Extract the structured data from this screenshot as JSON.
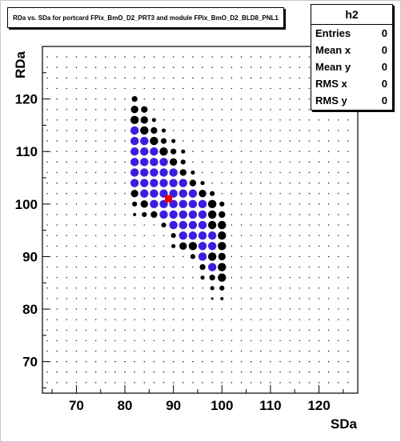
{
  "chart_data": {
    "type": "scatter",
    "title": "RDa vs. SDa for portcard FPix_BmO_D2_PRT3 and module FPix_BmO_D2_BLD8_PNL1",
    "xlabel": "SDa",
    "ylabel": "RDa",
    "xlim": [
      63,
      128
    ],
    "ylim": [
      64,
      130
    ],
    "xticks": [
      70,
      80,
      90,
      100,
      110,
      120
    ],
    "yticks": [
      70,
      80,
      90,
      100,
      110,
      120
    ],
    "grid": "dotted",
    "legend": "none",
    "colors": {
      "black": "#000000",
      "blue": "#3a1ee0",
      "red": "#e60000"
    },
    "points": [
      {
        "x": 82,
        "y": 120,
        "c": "black",
        "s": 0.7
      },
      {
        "x": 82,
        "y": 118,
        "c": "black",
        "s": 0.9
      },
      {
        "x": 84,
        "y": 118,
        "c": "black",
        "s": 0.8
      },
      {
        "x": 82,
        "y": 116,
        "c": "black",
        "s": 1.0
      },
      {
        "x": 84,
        "y": 116,
        "c": "black",
        "s": 0.9
      },
      {
        "x": 86,
        "y": 116,
        "c": "black",
        "s": 0.5
      },
      {
        "x": 82,
        "y": 114,
        "c": "blue",
        "s": 1.0
      },
      {
        "x": 84,
        "y": 114,
        "c": "black",
        "s": 1.0
      },
      {
        "x": 86,
        "y": 114,
        "c": "black",
        "s": 0.8
      },
      {
        "x": 88,
        "y": 114,
        "c": "black",
        "s": 0.5
      },
      {
        "x": 82,
        "y": 112,
        "c": "blue",
        "s": 1.0
      },
      {
        "x": 84,
        "y": 112,
        "c": "blue",
        "s": 1.0
      },
      {
        "x": 86,
        "y": 112,
        "c": "black",
        "s": 1.0
      },
      {
        "x": 88,
        "y": 112,
        "c": "black",
        "s": 0.7
      },
      {
        "x": 90,
        "y": 112,
        "c": "black",
        "s": 0.5
      },
      {
        "x": 82,
        "y": 110,
        "c": "blue",
        "s": 1.0
      },
      {
        "x": 84,
        "y": 110,
        "c": "blue",
        "s": 1.0
      },
      {
        "x": 86,
        "y": 110,
        "c": "blue",
        "s": 1.0
      },
      {
        "x": 88,
        "y": 110,
        "c": "black",
        "s": 1.0
      },
      {
        "x": 90,
        "y": 110,
        "c": "black",
        "s": 0.7
      },
      {
        "x": 92,
        "y": 110,
        "c": "black",
        "s": 0.5
      },
      {
        "x": 82,
        "y": 108,
        "c": "blue",
        "s": 1.0
      },
      {
        "x": 84,
        "y": 108,
        "c": "blue",
        "s": 1.0
      },
      {
        "x": 86,
        "y": 108,
        "c": "blue",
        "s": 1.0
      },
      {
        "x": 88,
        "y": 108,
        "c": "blue",
        "s": 1.0
      },
      {
        "x": 90,
        "y": 108,
        "c": "black",
        "s": 0.9
      },
      {
        "x": 92,
        "y": 108,
        "c": "black",
        "s": 0.6
      },
      {
        "x": 82,
        "y": 106,
        "c": "blue",
        "s": 1.0
      },
      {
        "x": 84,
        "y": 106,
        "c": "blue",
        "s": 1.0
      },
      {
        "x": 86,
        "y": 106,
        "c": "blue",
        "s": 1.0
      },
      {
        "x": 88,
        "y": 106,
        "c": "blue",
        "s": 1.0
      },
      {
        "x": 90,
        "y": 106,
        "c": "blue",
        "s": 1.0
      },
      {
        "x": 92,
        "y": 106,
        "c": "black",
        "s": 0.8
      },
      {
        "x": 94,
        "y": 106,
        "c": "black",
        "s": 0.5
      },
      {
        "x": 82,
        "y": 104,
        "c": "blue",
        "s": 1.0
      },
      {
        "x": 84,
        "y": 104,
        "c": "blue",
        "s": 1.0
      },
      {
        "x": 86,
        "y": 104,
        "c": "blue",
        "s": 1.0
      },
      {
        "x": 88,
        "y": 104,
        "c": "blue",
        "s": 1.0
      },
      {
        "x": 90,
        "y": 104,
        "c": "blue",
        "s": 1.0
      },
      {
        "x": 92,
        "y": 104,
        "c": "blue",
        "s": 1.0
      },
      {
        "x": 94,
        "y": 104,
        "c": "black",
        "s": 0.8
      },
      {
        "x": 96,
        "y": 104,
        "c": "black",
        "s": 0.5
      },
      {
        "x": 82,
        "y": 102,
        "c": "black",
        "s": 0.9
      },
      {
        "x": 84,
        "y": 102,
        "c": "blue",
        "s": 1.0
      },
      {
        "x": 86,
        "y": 102,
        "c": "blue",
        "s": 1.0
      },
      {
        "x": 88,
        "y": 102,
        "c": "blue",
        "s": 1.0
      },
      {
        "x": 90,
        "y": 102,
        "c": "blue",
        "s": 1.0
      },
      {
        "x": 92,
        "y": 102,
        "c": "blue",
        "s": 1.0
      },
      {
        "x": 94,
        "y": 102,
        "c": "blue",
        "s": 1.0
      },
      {
        "x": 96,
        "y": 102,
        "c": "black",
        "s": 0.9
      },
      {
        "x": 98,
        "y": 102,
        "c": "black",
        "s": 0.6
      },
      {
        "x": 82,
        "y": 100,
        "c": "black",
        "s": 0.6
      },
      {
        "x": 84,
        "y": 100,
        "c": "black",
        "s": 0.9
      },
      {
        "x": 86,
        "y": 100,
        "c": "blue",
        "s": 1.0
      },
      {
        "x": 88,
        "y": 100,
        "c": "blue",
        "s": 1.0
      },
      {
        "x": 90,
        "y": 100,
        "c": "blue",
        "s": 1.0
      },
      {
        "x": 92,
        "y": 100,
        "c": "blue",
        "s": 1.0
      },
      {
        "x": 94,
        "y": 100,
        "c": "blue",
        "s": 1.0
      },
      {
        "x": 96,
        "y": 100,
        "c": "blue",
        "s": 1.0
      },
      {
        "x": 98,
        "y": 100,
        "c": "black",
        "s": 1.0
      },
      {
        "x": 100,
        "y": 100,
        "c": "black",
        "s": 0.6
      },
      {
        "x": 82,
        "y": 98,
        "c": "black",
        "s": 0.4
      },
      {
        "x": 84,
        "y": 98,
        "c": "black",
        "s": 0.6
      },
      {
        "x": 86,
        "y": 98,
        "c": "black",
        "s": 0.8
      },
      {
        "x": 88,
        "y": 98,
        "c": "blue",
        "s": 1.0
      },
      {
        "x": 90,
        "y": 98,
        "c": "blue",
        "s": 1.0
      },
      {
        "x": 92,
        "y": 98,
        "c": "blue",
        "s": 1.0
      },
      {
        "x": 94,
        "y": 98,
        "c": "blue",
        "s": 1.0
      },
      {
        "x": 96,
        "y": 98,
        "c": "blue",
        "s": 1.0
      },
      {
        "x": 98,
        "y": 98,
        "c": "black",
        "s": 1.0
      },
      {
        "x": 100,
        "y": 98,
        "c": "black",
        "s": 0.8
      },
      {
        "x": 88,
        "y": 96,
        "c": "black",
        "s": 0.6
      },
      {
        "x": 90,
        "y": 96,
        "c": "blue",
        "s": 1.0
      },
      {
        "x": 92,
        "y": 96,
        "c": "blue",
        "s": 1.0
      },
      {
        "x": 94,
        "y": 96,
        "c": "blue",
        "s": 1.0
      },
      {
        "x": 96,
        "y": 96,
        "c": "blue",
        "s": 1.0
      },
      {
        "x": 98,
        "y": 96,
        "c": "black",
        "s": 1.0
      },
      {
        "x": 100,
        "y": 96,
        "c": "black",
        "s": 1.0
      },
      {
        "x": 90,
        "y": 94,
        "c": "black",
        "s": 0.6
      },
      {
        "x": 92,
        "y": 94,
        "c": "blue",
        "s": 1.0
      },
      {
        "x": 94,
        "y": 94,
        "c": "blue",
        "s": 1.0
      },
      {
        "x": 96,
        "y": 94,
        "c": "blue",
        "s": 1.0
      },
      {
        "x": 98,
        "y": 94,
        "c": "blue",
        "s": 1.0
      },
      {
        "x": 100,
        "y": 94,
        "c": "black",
        "s": 1.0
      },
      {
        "x": 90,
        "y": 92,
        "c": "black",
        "s": 0.5
      },
      {
        "x": 92,
        "y": 92,
        "c": "black",
        "s": 0.9
      },
      {
        "x": 94,
        "y": 92,
        "c": "black",
        "s": 1.0
      },
      {
        "x": 96,
        "y": 92,
        "c": "blue",
        "s": 1.0
      },
      {
        "x": 98,
        "y": 92,
        "c": "blue",
        "s": 1.0
      },
      {
        "x": 100,
        "y": 92,
        "c": "black",
        "s": 1.0
      },
      {
        "x": 94,
        "y": 90,
        "c": "black",
        "s": 0.6
      },
      {
        "x": 96,
        "y": 90,
        "c": "blue",
        "s": 1.0
      },
      {
        "x": 98,
        "y": 90,
        "c": "black",
        "s": 1.0
      },
      {
        "x": 100,
        "y": 90,
        "c": "black",
        "s": 0.9
      },
      {
        "x": 96,
        "y": 88,
        "c": "black",
        "s": 0.7
      },
      {
        "x": 98,
        "y": 88,
        "c": "blue",
        "s": 1.0
      },
      {
        "x": 100,
        "y": 88,
        "c": "black",
        "s": 1.0
      },
      {
        "x": 96,
        "y": 86,
        "c": "black",
        "s": 0.5
      },
      {
        "x": 98,
        "y": 86,
        "c": "black",
        "s": 0.7
      },
      {
        "x": 100,
        "y": 86,
        "c": "black",
        "s": 1.0
      },
      {
        "x": 98,
        "y": 84,
        "c": "black",
        "s": 0.5
      },
      {
        "x": 100,
        "y": 84,
        "c": "black",
        "s": 0.6
      },
      {
        "x": 98,
        "y": 82,
        "c": "black",
        "s": 0.3
      },
      {
        "x": 100,
        "y": 82,
        "c": "black",
        "s": 0.4
      }
    ],
    "highlight": {
      "x": 89,
      "y": 101,
      "c": "red"
    }
  },
  "stats": {
    "name": "h2",
    "rows": [
      {
        "label": "Entries",
        "value": "0"
      },
      {
        "label": "Mean x",
        "value": "0"
      },
      {
        "label": "Mean y",
        "value": "0"
      },
      {
        "label": "RMS x",
        "value": "0"
      },
      {
        "label": "RMS y",
        "value": "0"
      }
    ]
  }
}
